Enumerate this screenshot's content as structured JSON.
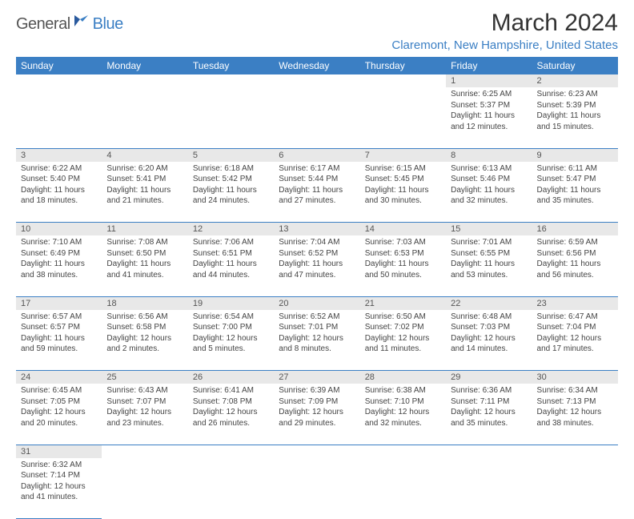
{
  "logo": {
    "text1": "General",
    "text2": "Blue"
  },
  "title": "March 2024",
  "location": "Claremont, New Hampshire, United States",
  "colors": {
    "header_bg": "#3b7fc4",
    "header_text": "#ffffff",
    "daynum_bg": "#e8e8e8",
    "border": "#3b7fc4",
    "title_color": "#333333",
    "location_color": "#3b7fc4",
    "body_text": "#444444"
  },
  "weekdays": [
    "Sunday",
    "Monday",
    "Tuesday",
    "Wednesday",
    "Thursday",
    "Friday",
    "Saturday"
  ],
  "weeks": [
    [
      null,
      null,
      null,
      null,
      null,
      {
        "n": "1",
        "sr": "Sunrise: 6:25 AM",
        "ss": "Sunset: 5:37 PM",
        "dl1": "Daylight: 11 hours",
        "dl2": "and 12 minutes."
      },
      {
        "n": "2",
        "sr": "Sunrise: 6:23 AM",
        "ss": "Sunset: 5:39 PM",
        "dl1": "Daylight: 11 hours",
        "dl2": "and 15 minutes."
      }
    ],
    [
      {
        "n": "3",
        "sr": "Sunrise: 6:22 AM",
        "ss": "Sunset: 5:40 PM",
        "dl1": "Daylight: 11 hours",
        "dl2": "and 18 minutes."
      },
      {
        "n": "4",
        "sr": "Sunrise: 6:20 AM",
        "ss": "Sunset: 5:41 PM",
        "dl1": "Daylight: 11 hours",
        "dl2": "and 21 minutes."
      },
      {
        "n": "5",
        "sr": "Sunrise: 6:18 AM",
        "ss": "Sunset: 5:42 PM",
        "dl1": "Daylight: 11 hours",
        "dl2": "and 24 minutes."
      },
      {
        "n": "6",
        "sr": "Sunrise: 6:17 AM",
        "ss": "Sunset: 5:44 PM",
        "dl1": "Daylight: 11 hours",
        "dl2": "and 27 minutes."
      },
      {
        "n": "7",
        "sr": "Sunrise: 6:15 AM",
        "ss": "Sunset: 5:45 PM",
        "dl1": "Daylight: 11 hours",
        "dl2": "and 30 minutes."
      },
      {
        "n": "8",
        "sr": "Sunrise: 6:13 AM",
        "ss": "Sunset: 5:46 PM",
        "dl1": "Daylight: 11 hours",
        "dl2": "and 32 minutes."
      },
      {
        "n": "9",
        "sr": "Sunrise: 6:11 AM",
        "ss": "Sunset: 5:47 PM",
        "dl1": "Daylight: 11 hours",
        "dl2": "and 35 minutes."
      }
    ],
    [
      {
        "n": "10",
        "sr": "Sunrise: 7:10 AM",
        "ss": "Sunset: 6:49 PM",
        "dl1": "Daylight: 11 hours",
        "dl2": "and 38 minutes."
      },
      {
        "n": "11",
        "sr": "Sunrise: 7:08 AM",
        "ss": "Sunset: 6:50 PM",
        "dl1": "Daylight: 11 hours",
        "dl2": "and 41 minutes."
      },
      {
        "n": "12",
        "sr": "Sunrise: 7:06 AM",
        "ss": "Sunset: 6:51 PM",
        "dl1": "Daylight: 11 hours",
        "dl2": "and 44 minutes."
      },
      {
        "n": "13",
        "sr": "Sunrise: 7:04 AM",
        "ss": "Sunset: 6:52 PM",
        "dl1": "Daylight: 11 hours",
        "dl2": "and 47 minutes."
      },
      {
        "n": "14",
        "sr": "Sunrise: 7:03 AM",
        "ss": "Sunset: 6:53 PM",
        "dl1": "Daylight: 11 hours",
        "dl2": "and 50 minutes."
      },
      {
        "n": "15",
        "sr": "Sunrise: 7:01 AM",
        "ss": "Sunset: 6:55 PM",
        "dl1": "Daylight: 11 hours",
        "dl2": "and 53 minutes."
      },
      {
        "n": "16",
        "sr": "Sunrise: 6:59 AM",
        "ss": "Sunset: 6:56 PM",
        "dl1": "Daylight: 11 hours",
        "dl2": "and 56 minutes."
      }
    ],
    [
      {
        "n": "17",
        "sr": "Sunrise: 6:57 AM",
        "ss": "Sunset: 6:57 PM",
        "dl1": "Daylight: 11 hours",
        "dl2": "and 59 minutes."
      },
      {
        "n": "18",
        "sr": "Sunrise: 6:56 AM",
        "ss": "Sunset: 6:58 PM",
        "dl1": "Daylight: 12 hours",
        "dl2": "and 2 minutes."
      },
      {
        "n": "19",
        "sr": "Sunrise: 6:54 AM",
        "ss": "Sunset: 7:00 PM",
        "dl1": "Daylight: 12 hours",
        "dl2": "and 5 minutes."
      },
      {
        "n": "20",
        "sr": "Sunrise: 6:52 AM",
        "ss": "Sunset: 7:01 PM",
        "dl1": "Daylight: 12 hours",
        "dl2": "and 8 minutes."
      },
      {
        "n": "21",
        "sr": "Sunrise: 6:50 AM",
        "ss": "Sunset: 7:02 PM",
        "dl1": "Daylight: 12 hours",
        "dl2": "and 11 minutes."
      },
      {
        "n": "22",
        "sr": "Sunrise: 6:48 AM",
        "ss": "Sunset: 7:03 PM",
        "dl1": "Daylight: 12 hours",
        "dl2": "and 14 minutes."
      },
      {
        "n": "23",
        "sr": "Sunrise: 6:47 AM",
        "ss": "Sunset: 7:04 PM",
        "dl1": "Daylight: 12 hours",
        "dl2": "and 17 minutes."
      }
    ],
    [
      {
        "n": "24",
        "sr": "Sunrise: 6:45 AM",
        "ss": "Sunset: 7:05 PM",
        "dl1": "Daylight: 12 hours",
        "dl2": "and 20 minutes."
      },
      {
        "n": "25",
        "sr": "Sunrise: 6:43 AM",
        "ss": "Sunset: 7:07 PM",
        "dl1": "Daylight: 12 hours",
        "dl2": "and 23 minutes."
      },
      {
        "n": "26",
        "sr": "Sunrise: 6:41 AM",
        "ss": "Sunset: 7:08 PM",
        "dl1": "Daylight: 12 hours",
        "dl2": "and 26 minutes."
      },
      {
        "n": "27",
        "sr": "Sunrise: 6:39 AM",
        "ss": "Sunset: 7:09 PM",
        "dl1": "Daylight: 12 hours",
        "dl2": "and 29 minutes."
      },
      {
        "n": "28",
        "sr": "Sunrise: 6:38 AM",
        "ss": "Sunset: 7:10 PM",
        "dl1": "Daylight: 12 hours",
        "dl2": "and 32 minutes."
      },
      {
        "n": "29",
        "sr": "Sunrise: 6:36 AM",
        "ss": "Sunset: 7:11 PM",
        "dl1": "Daylight: 12 hours",
        "dl2": "and 35 minutes."
      },
      {
        "n": "30",
        "sr": "Sunrise: 6:34 AM",
        "ss": "Sunset: 7:13 PM",
        "dl1": "Daylight: 12 hours",
        "dl2": "and 38 minutes."
      }
    ],
    [
      {
        "n": "31",
        "sr": "Sunrise: 6:32 AM",
        "ss": "Sunset: 7:14 PM",
        "dl1": "Daylight: 12 hours",
        "dl2": "and 41 minutes."
      },
      null,
      null,
      null,
      null,
      null,
      null
    ]
  ]
}
